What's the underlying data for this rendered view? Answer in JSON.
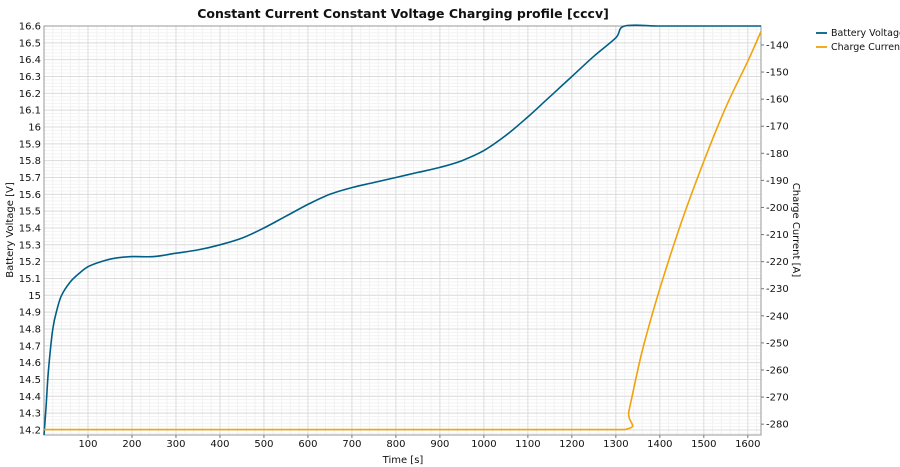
{
  "chart_data": {
    "type": "line",
    "title": "Constant Current Constant Voltage Charging profile [cccv]",
    "xlabel": "Time [s]",
    "ylabel": "Battery Voltage [V]",
    "y2label": "Charge Current [A]",
    "xlim": [
      0,
      1630
    ],
    "ylim": [
      14.17,
      16.6
    ],
    "y2lim": [
      -284,
      -133
    ],
    "grid": true,
    "legend_position": "top-right",
    "xticks": [
      100,
      200,
      300,
      400,
      500,
      600,
      700,
      800,
      900,
      1000,
      1100,
      1200,
      1300,
      1400,
      1500,
      1600
    ],
    "yticks": [
      14.2,
      14.3,
      14.4,
      14.5,
      14.6,
      14.7,
      14.8,
      14.9,
      15,
      15.1,
      15.2,
      15.3,
      15.4,
      15.5,
      15.6,
      15.7,
      15.8,
      15.9,
      16,
      16.1,
      16.2,
      16.3,
      16.4,
      16.5,
      16.6
    ],
    "y2ticks": [
      -140,
      -150,
      -160,
      -170,
      -180,
      -190,
      -200,
      -210,
      -220,
      -230,
      -240,
      -250,
      -260,
      -270,
      -280
    ],
    "series": [
      {
        "name": "Battery Voltage",
        "axis": "left",
        "color": "#005f87",
        "x": [
          0,
          5,
          10,
          20,
          30,
          40,
          60,
          80,
          100,
          130,
          160,
          200,
          250,
          300,
          350,
          400,
          450,
          500,
          550,
          600,
          650,
          700,
          750,
          800,
          850,
          900,
          950,
          1000,
          1050,
          1100,
          1150,
          1200,
          1250,
          1300,
          1320,
          1400,
          1500,
          1600,
          1630
        ],
        "values": [
          14.17,
          14.35,
          14.55,
          14.8,
          14.92,
          15.0,
          15.08,
          15.13,
          15.17,
          15.2,
          15.22,
          15.23,
          15.23,
          15.25,
          15.27,
          15.3,
          15.34,
          15.4,
          15.47,
          15.54,
          15.6,
          15.64,
          15.67,
          15.7,
          15.73,
          15.76,
          15.8,
          15.86,
          15.95,
          16.06,
          16.18,
          16.3,
          16.42,
          16.53,
          16.6,
          16.6,
          16.6,
          16.6,
          16.6
        ]
      },
      {
        "name": "Charge Current",
        "axis": "right",
        "color": "#f0a30a",
        "x": [
          0,
          1100,
          1320,
          1330,
          1360,
          1400,
          1450,
          1500,
          1550,
          1600,
          1630
        ],
        "values": [
          -282,
          -282,
          -282,
          -275,
          -253,
          -230,
          -205,
          -183,
          -163,
          -146,
          -135
        ]
      }
    ]
  }
}
